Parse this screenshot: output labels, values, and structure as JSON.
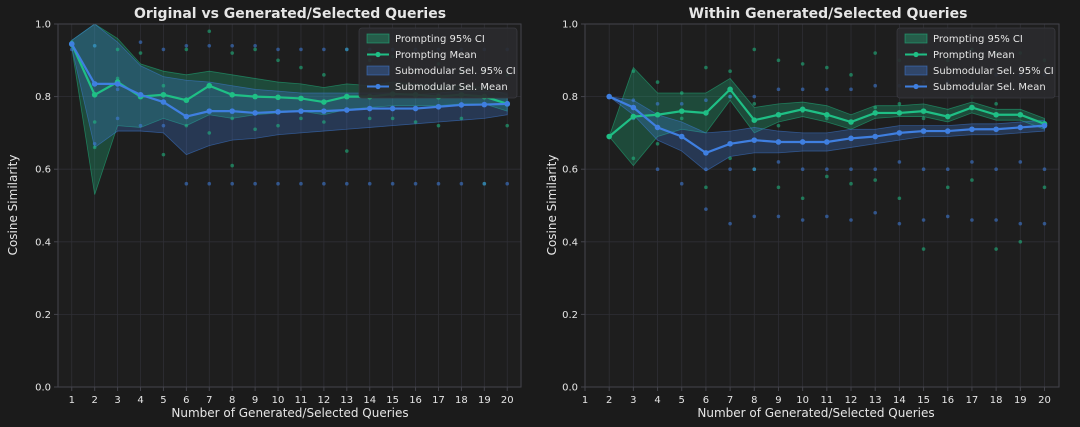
{
  "figure": {
    "background": "#1b1b1b",
    "axes_background": "#1e1e1e",
    "grid_color": "#2f2f35",
    "spine_color": "#44444c",
    "text_color": "#e6e6e6",
    "prompting_color": "#1fbf85",
    "submodular_color": "#3f7fe0"
  },
  "chart_data": [
    {
      "type": "line",
      "title": "Original vs Generated/Selected Queries",
      "xlabel": "Number of Generated/Selected Queries",
      "ylabel": "Cosine Similarity",
      "xlim": [
        0.4,
        20.6
      ],
      "ylim": [
        0,
        1
      ],
      "xticks": [
        1,
        2,
        3,
        4,
        5,
        6,
        7,
        8,
        9,
        10,
        11,
        12,
        13,
        14,
        15,
        16,
        17,
        18,
        19,
        20
      ],
      "yticks": [
        0.0,
        0.2,
        0.4,
        0.6,
        0.8,
        1.0
      ],
      "grid": true,
      "legend_position": "top-right",
      "x": [
        1,
        2,
        3,
        4,
        5,
        6,
        7,
        8,
        9,
        10,
        11,
        12,
        13,
        14,
        15,
        16,
        17,
        18,
        19,
        20
      ],
      "series": [
        {
          "name": "Prompting Mean",
          "kind": "mean",
          "color": "#1fbf85",
          "values": [
            0.945,
            0.805,
            0.84,
            0.8,
            0.805,
            0.79,
            0.83,
            0.805,
            0.8,
            0.798,
            0.795,
            0.785,
            0.8,
            0.8,
            0.807,
            0.805,
            0.8,
            0.805,
            0.8,
            0.78
          ]
        },
        {
          "name": "Prompting 95% CI",
          "kind": "band",
          "color": "#1fbf85",
          "lower": [
            0.935,
            0.53,
            0.72,
            0.715,
            0.74,
            0.72,
            0.75,
            0.74,
            0.75,
            0.755,
            0.76,
            0.75,
            0.765,
            0.77,
            0.775,
            0.775,
            0.775,
            0.78,
            0.78,
            0.76
          ],
          "upper": [
            0.955,
            1.0,
            0.96,
            0.89,
            0.87,
            0.86,
            0.87,
            0.86,
            0.85,
            0.84,
            0.835,
            0.825,
            0.835,
            0.83,
            0.84,
            0.835,
            0.83,
            0.83,
            0.825,
            0.805
          ]
        },
        {
          "name": "Submodular Sel. Mean",
          "kind": "mean",
          "color": "#3f7fe0",
          "values": [
            0.945,
            0.835,
            0.835,
            0.805,
            0.785,
            0.745,
            0.76,
            0.76,
            0.755,
            0.758,
            0.76,
            0.76,
            0.763,
            0.767,
            0.767,
            0.767,
            0.772,
            0.777,
            0.778,
            0.78
          ]
        },
        {
          "name": "Submodular Sel. 95% CI",
          "kind": "band",
          "color": "#3f7fe0",
          "lower": [
            0.935,
            0.66,
            0.705,
            0.705,
            0.7,
            0.64,
            0.665,
            0.68,
            0.685,
            0.695,
            0.7,
            0.705,
            0.71,
            0.715,
            0.72,
            0.725,
            0.73,
            0.735,
            0.74,
            0.75
          ],
          "upper": [
            0.955,
            1.0,
            0.95,
            0.885,
            0.855,
            0.845,
            0.84,
            0.83,
            0.82,
            0.815,
            0.81,
            0.81,
            0.81,
            0.81,
            0.81,
            0.805,
            0.81,
            0.815,
            0.815,
            0.81
          ]
        }
      ],
      "scatter": {
        "prompting": {
          "x": [
            1,
            1,
            2,
            2,
            2,
            3,
            3,
            4,
            5,
            5,
            6,
            6,
            7,
            7,
            8,
            8,
            8,
            9,
            9,
            10,
            10,
            11,
            11,
            12,
            12,
            13,
            13,
            14,
            14,
            15,
            15,
            16,
            16,
            17,
            17,
            18,
            18,
            19,
            19,
            20,
            20
          ],
          "y": [
            0.94,
            0.95,
            0.94,
            0.66,
            0.73,
            0.93,
            0.85,
            0.92,
            0.83,
            0.64,
            0.93,
            0.72,
            0.98,
            0.7,
            0.92,
            0.74,
            0.61,
            0.93,
            0.71,
            0.9,
            0.72,
            0.88,
            0.74,
            0.86,
            0.73,
            0.93,
            0.65,
            0.9,
            0.74,
            0.91,
            0.74,
            0.87,
            0.73,
            0.89,
            0.72,
            0.87,
            0.74,
            0.87,
            0.56,
            0.86,
            0.72
          ]
        },
        "submodular": {
          "x": [
            1,
            2,
            2,
            3,
            3,
            4,
            4,
            5,
            5,
            6,
            6,
            7,
            7,
            8,
            8,
            9,
            9,
            10,
            10,
            11,
            11,
            12,
            12,
            13,
            13,
            14,
            14,
            15,
            15,
            16,
            16,
            17,
            17,
            18,
            18,
            19,
            19,
            20,
            20
          ],
          "y": [
            0.93,
            0.94,
            0.67,
            0.82,
            0.74,
            0.95,
            0.72,
            0.93,
            0.72,
            0.94,
            0.56,
            0.94,
            0.56,
            0.94,
            0.56,
            0.94,
            0.56,
            0.93,
            0.56,
            0.93,
            0.56,
            0.93,
            0.56,
            0.93,
            0.56,
            0.93,
            0.56,
            0.93,
            0.56,
            0.93,
            0.56,
            0.93,
            0.56,
            0.93,
            0.56,
            0.93,
            0.56,
            0.93,
            0.56
          ]
        }
      }
    },
    {
      "type": "line",
      "title": "Within Generated/Selected Queries",
      "xlabel": "Number of Generated/Selected Queries",
      "ylabel": "Cosine Similarity",
      "xlim": [
        1,
        20.6
      ],
      "ylim": [
        0,
        1
      ],
      "xticks": [
        1,
        2,
        3,
        4,
        5,
        6,
        7,
        8,
        9,
        10,
        11,
        12,
        13,
        14,
        15,
        16,
        17,
        18,
        19,
        20
      ],
      "yticks": [
        0.0,
        0.2,
        0.4,
        0.6,
        0.8,
        1.0
      ],
      "grid": true,
      "legend_position": "top-right",
      "x": [
        2,
        3,
        4,
        5,
        6,
        7,
        8,
        9,
        10,
        11,
        12,
        13,
        14,
        15,
        16,
        17,
        18,
        19,
        20
      ],
      "series": [
        {
          "name": "Prompting Mean",
          "kind": "mean",
          "color": "#1fbf85",
          "values": [
            0.69,
            0.745,
            0.75,
            0.76,
            0.755,
            0.82,
            0.735,
            0.75,
            0.765,
            0.75,
            0.73,
            0.755,
            0.755,
            0.76,
            0.745,
            0.77,
            0.75,
            0.75,
            0.725
          ]
        },
        {
          "name": "Prompting 95% CI",
          "kind": "band",
          "color": "#1fbf85",
          "lower": [
            0.69,
            0.61,
            0.69,
            0.71,
            0.7,
            0.79,
            0.7,
            0.73,
            0.745,
            0.73,
            0.71,
            0.74,
            0.745,
            0.745,
            0.73,
            0.755,
            0.735,
            0.735,
            0.71
          ],
          "upper": [
            0.69,
            0.88,
            0.81,
            0.81,
            0.81,
            0.85,
            0.77,
            0.78,
            0.785,
            0.775,
            0.75,
            0.775,
            0.775,
            0.78,
            0.765,
            0.785,
            0.765,
            0.765,
            0.74
          ]
        },
        {
          "name": "Submodular Sel. Mean",
          "kind": "mean",
          "color": "#3f7fe0",
          "values": [
            0.8,
            0.77,
            0.715,
            0.69,
            0.645,
            0.67,
            0.68,
            0.675,
            0.675,
            0.675,
            0.685,
            0.69,
            0.7,
            0.705,
            0.705,
            0.71,
            0.71,
            0.715,
            0.72
          ]
        },
        {
          "name": "Submodular Sel. 95% CI",
          "kind": "band",
          "color": "#3f7fe0",
          "lower": [
            0.8,
            0.75,
            0.68,
            0.65,
            0.595,
            0.635,
            0.645,
            0.645,
            0.65,
            0.65,
            0.66,
            0.67,
            0.68,
            0.69,
            0.69,
            0.695,
            0.695,
            0.7,
            0.705
          ],
          "upper": [
            0.8,
            0.79,
            0.75,
            0.73,
            0.7,
            0.705,
            0.715,
            0.705,
            0.7,
            0.7,
            0.71,
            0.71,
            0.72,
            0.72,
            0.72,
            0.725,
            0.725,
            0.73,
            0.735
          ]
        }
      ],
      "scatter": {
        "prompting": {
          "x": [
            2,
            3,
            3,
            4,
            4,
            5,
            5,
            6,
            6,
            7,
            7,
            7,
            8,
            8,
            8,
            9,
            9,
            9,
            10,
            10,
            10,
            11,
            11,
            11,
            12,
            12,
            13,
            13,
            13,
            14,
            14,
            14,
            15,
            15,
            15,
            16,
            16,
            17,
            17,
            17,
            18,
            18,
            18,
            19,
            19,
            19,
            20,
            20,
            20
          ],
          "y": [
            0.69,
            0.87,
            0.63,
            0.84,
            0.67,
            0.81,
            0.74,
            0.88,
            0.55,
            0.87,
            0.63,
            0.8,
            0.93,
            0.6,
            0.78,
            0.9,
            0.55,
            0.72,
            0.89,
            0.52,
            0.76,
            0.88,
            0.58,
            0.74,
            0.86,
            0.56,
            0.92,
            0.57,
            0.77,
            0.9,
            0.52,
            0.78,
            0.92,
            0.38,
            0.74,
            0.9,
            0.55,
            0.93,
            0.57,
            0.8,
            0.92,
            0.38,
            0.78,
            0.92,
            0.4,
            0.75,
            0.9,
            0.55,
            0.72
          ]
        },
        "submodular": {
          "x": [
            2,
            3,
            3,
            4,
            4,
            5,
            5,
            6,
            6,
            6,
            7,
            7,
            7,
            8,
            8,
            8,
            9,
            9,
            9,
            10,
            10,
            10,
            11,
            11,
            11,
            12,
            12,
            12,
            13,
            13,
            13,
            14,
            14,
            14,
            15,
            15,
            15,
            16,
            16,
            16,
            17,
            17,
            17,
            18,
            18,
            18,
            19,
            19,
            19,
            20,
            20,
            20
          ],
          "y": [
            0.8,
            0.79,
            0.74,
            0.78,
            0.6,
            0.78,
            0.56,
            0.79,
            0.49,
            0.6,
            0.8,
            0.45,
            0.6,
            0.8,
            0.47,
            0.6,
            0.82,
            0.47,
            0.62,
            0.82,
            0.46,
            0.6,
            0.82,
            0.47,
            0.6,
            0.82,
            0.46,
            0.6,
            0.83,
            0.48,
            0.6,
            0.83,
            0.45,
            0.62,
            0.84,
            0.46,
            0.6,
            0.84,
            0.47,
            0.6,
            0.84,
            0.46,
            0.62,
            0.86,
            0.46,
            0.6,
            0.86,
            0.45,
            0.62,
            0.86,
            0.45,
            0.6
          ]
        }
      }
    }
  ]
}
